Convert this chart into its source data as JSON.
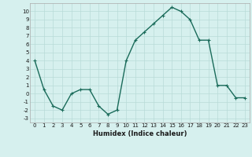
{
  "x": [
    0,
    1,
    2,
    3,
    4,
    5,
    6,
    7,
    8,
    9,
    10,
    11,
    12,
    13,
    14,
    15,
    16,
    17,
    18,
    19,
    20,
    21,
    22,
    23
  ],
  "y": [
    4,
    0.5,
    -1.5,
    -2,
    0,
    0.5,
    0.5,
    -1.5,
    -2.5,
    -2,
    4,
    6.5,
    7.5,
    8.5,
    9.5,
    10.5,
    10,
    9,
    6.5,
    6.5,
    1,
    1,
    -0.5,
    -0.5
  ],
  "line_color": "#1a6b5a",
  "marker": "+",
  "marker_size": 3,
  "marker_lw": 0.8,
  "line_width": 1.0,
  "bg_color": "#d6f0ee",
  "grid_color": "#b8dbd8",
  "xlabel": "Humidex (Indice chaleur)",
  "xlim": [
    -0.5,
    23.5
  ],
  "ylim": [
    -3.5,
    11
  ],
  "yticks": [
    -3,
    -2,
    -1,
    0,
    1,
    2,
    3,
    4,
    5,
    6,
    7,
    8,
    9,
    10
  ],
  "xticks": [
    0,
    1,
    2,
    3,
    4,
    5,
    6,
    7,
    8,
    9,
    10,
    11,
    12,
    13,
    14,
    15,
    16,
    17,
    18,
    19,
    20,
    21,
    22,
    23
  ],
  "tick_fontsize": 5.0,
  "xlabel_fontsize": 6.0
}
